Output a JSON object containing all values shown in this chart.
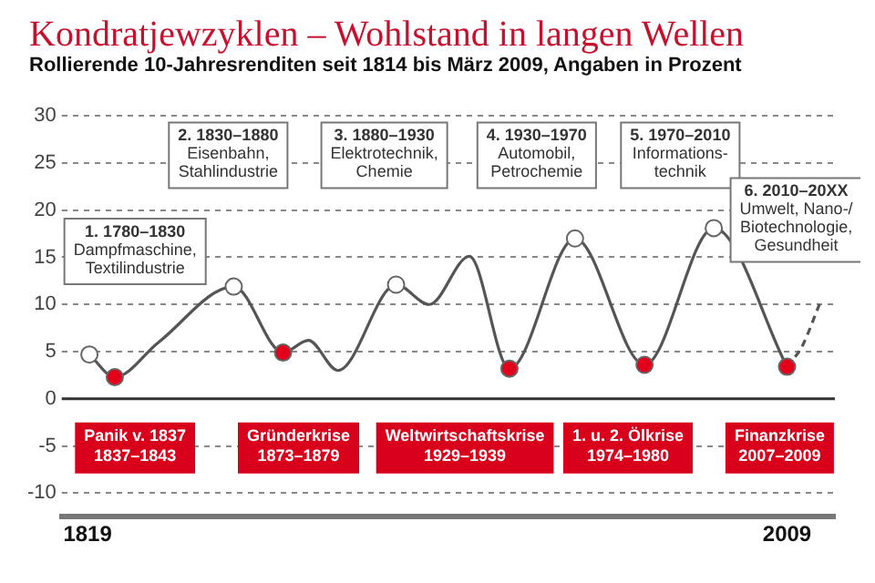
{
  "chart_data": {
    "type": "line",
    "title": "Kondratjewzyklen – Wohlstand in langen Wellen",
    "subtitle": "Rollierende 10-Jahresrenditen seit 1814 bis März 2009, Angaben in Prozent",
    "xlim": [
      1812,
      2022
    ],
    "xticks": [
      1819,
      2009
    ],
    "ylim": [
      -12.5,
      30
    ],
    "yticks": [
      -10,
      -5,
      0,
      5,
      10,
      15,
      20,
      25,
      30
    ],
    "grid": "y",
    "legend": false,
    "ref_lines": [
      {
        "axis": "y",
        "value": 0,
        "color": "#333333"
      }
    ],
    "series": [
      {
        "type": "line",
        "color": "#555555",
        "marker": "none",
        "line_style": "solid",
        "x": [
          1819.5,
          1826.4,
          1838.3,
          1858.7,
          1872.1,
          1879,
          1887,
          1902.8,
          1911.8,
          1922.7,
          1933.6,
          1951.4,
          1970.3,
          1989.1,
          2009
        ],
        "values": [
          4.7,
          2.3,
          6,
          11.9,
          4.9,
          6.2,
          3,
          12.1,
          10,
          15.1,
          3.2,
          17,
          3.6,
          18.1,
          3.4
        ]
      },
      {
        "type": "line",
        "color": "#555555",
        "marker": "none",
        "line_style": "dashed",
        "x": [
          2009,
          2013,
          2018
        ],
        "values": [
          3.4,
          5.5,
          10.2
        ]
      },
      {
        "type": "scatter",
        "color": "#ffffff",
        "marker": "circle",
        "x": [
          1819.5,
          1858.7,
          1902.8,
          1951.4,
          1989.1
        ],
        "values": [
          4.7,
          11.9,
          12.1,
          17,
          18.1
        ]
      },
      {
        "type": "scatter",
        "color": "#e3001b",
        "marker": "circle",
        "x": [
          1826.4,
          1872.1,
          1933.6,
          1970.3,
          2009
        ],
        "values": [
          2.3,
          4.9,
          3.2,
          3.6,
          3.4
        ]
      }
    ],
    "annotations": [
      "1. 1780–1830\nDampfmaschine,\nTextilindustrie",
      "2. 1830–1880\nEisenbahn,\nStahlindustrie",
      "3. 1880–1930\nElektrotechnik,\nChemie",
      "4. 1930–1970\nAutomobil,\nPetrochemie",
      "5. 1970–2010\nInformations-\ntechnik",
      "6. 2010–20XX\nUmwelt, Nano-/\nBiotechnologie,\nGesundheit",
      "Panik v. 1837\n1837–1843",
      "Gründerkrise\n1873–1879",
      "Weltwirtschaftskrise\n1929–1939",
      "1. u. 2. Ölkrise\n1974–1980",
      "Finanzkrise\n2007–2009"
    ]
  }
}
